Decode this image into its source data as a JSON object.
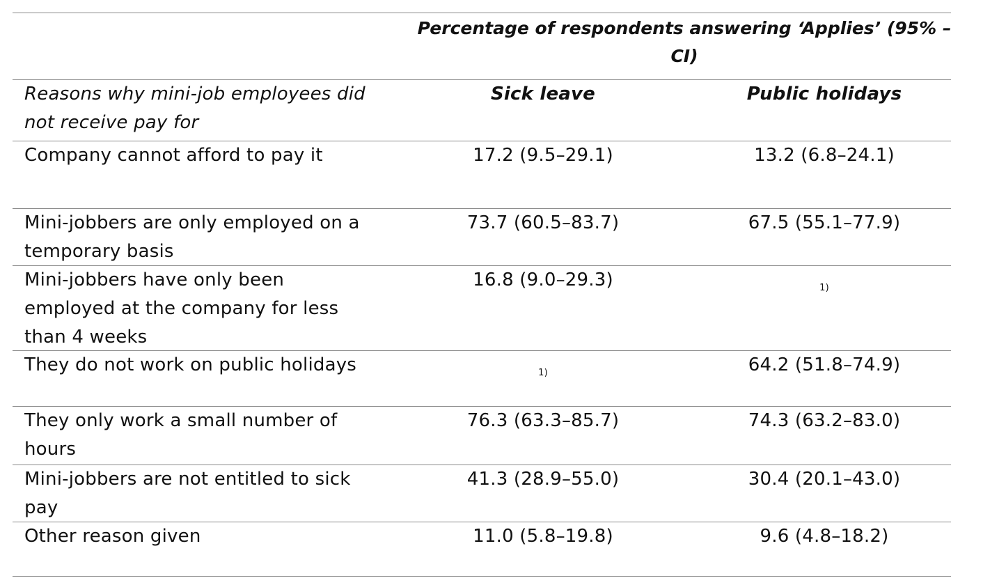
{
  "table": {
    "group_header": "Percentage of respondents answering ‘Applies’ (95% –\nCI)",
    "row_label_header": "Reasons why mini-job employees did not receive pay for",
    "column_headers": [
      "Sick leave",
      "Public holidays"
    ],
    "rows": [
      {
        "reason": "Company cannot afford to pay it",
        "sick_leave": "17.2 (9.5–29.1)",
        "public_holidays": "13.2 (6.8–24.1)"
      },
      {
        "reason": "Mini-jobbers are only employed on a temporary basis",
        "sick_leave": "73.7 (60.5–83.7)",
        "public_holidays": "67.5 (55.1–77.9)"
      },
      {
        "reason": "Mini-jobbers have only been employed at the company for less than 4 weeks",
        "sick_leave": "16.8 (9.0–29.3)",
        "public_holidays": "1)"
      },
      {
        "reason": "They do not work on public holidays",
        "sick_leave": "1)",
        "public_holidays": "64.2 (51.8–74.9)"
      },
      {
        "reason": "They only work a small number of hours",
        "sick_leave": "76.3 (63.3–85.7)",
        "public_holidays": "74.3 (63.2–83.0)"
      },
      {
        "reason": "Mini-jobbers are not entitled to sick pay",
        "sick_leave": "41.3 (28.9–55.0)",
        "public_holidays": "30.4 (20.1–43.0)"
      },
      {
        "reason": "Other reason given",
        "sick_leave": "11.0 (5.8–19.8)",
        "public_holidays": "9.6 (4.8–18.2)"
      }
    ]
  }
}
